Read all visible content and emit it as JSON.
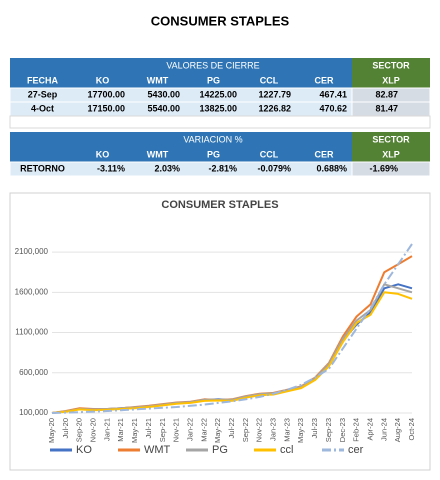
{
  "header": {
    "title": "CONSUMER STAPLES"
  },
  "tables": [
    {
      "group": "VALORES DE CIERRE",
      "sector": "SECTOR",
      "columns": [
        "FECHA",
        "KO",
        "WMT",
        "PG",
        "CCL",
        "CER",
        "XLP"
      ],
      "rows": [
        [
          "27-Sep",
          "17700.00",
          "5430.00",
          "14225.00",
          "1227.79",
          "467.41",
          "82.87"
        ],
        [
          "4-Oct",
          "17150.00",
          "5540.00",
          "13825.00",
          "1226.82",
          "470.62",
          "81.47"
        ]
      ]
    },
    {
      "group": "VARIACION %",
      "sector": "SECTOR",
      "columns": [
        "KO",
        "WMT",
        "PG",
        "CCL",
        "CER",
        "XLP"
      ],
      "rows": [
        [
          "RETORNO",
          "-3.11%",
          "2.03%",
          "-2.81%",
          "-0.079%",
          "0.688%",
          "-1.69%"
        ]
      ]
    }
  ],
  "chart_data": {
    "type": "line",
    "title": "CONSUMER STAPLES",
    "x": [
      "May-20",
      "Jul-20",
      "Sep-20",
      "Nov-20",
      "Jan-21",
      "Mar-21",
      "May-21",
      "Jul-21",
      "Sep-21",
      "Nov-21",
      "Jan-22",
      "Mar-22",
      "May-22",
      "Jul-22",
      "Sep-22",
      "Nov-22",
      "Jan-23",
      "Mar-23",
      "May-23",
      "Jul-23",
      "Sep-23",
      "Dec-23",
      "Feb-24",
      "Apr-24",
      "Jun-24",
      "Aug-24",
      "Oct-24"
    ],
    "series": [
      {
        "name": "KO",
        "color": "#4472c4",
        "values": [
          100000,
          120000,
          150000,
          140000,
          150000,
          160000,
          170000,
          180000,
          200000,
          220000,
          230000,
          260000,
          270000,
          260000,
          300000,
          330000,
          340000,
          380000,
          420000,
          520000,
          700000,
          1000000,
          1200000,
          1350000,
          1650000,
          1700000,
          1650000
        ]
      },
      {
        "name": "WMT",
        "color": "#ed7d31",
        "values": [
          100000,
          125000,
          160000,
          150000,
          150000,
          160000,
          175000,
          190000,
          210000,
          230000,
          240000,
          270000,
          260000,
          270000,
          310000,
          340000,
          350000,
          390000,
          430000,
          540000,
          720000,
          1050000,
          1300000,
          1450000,
          1850000,
          1950000,
          2050000
        ]
      },
      {
        "name": "PG",
        "color": "#a5a5a5",
        "values": [
          100000,
          120000,
          150000,
          145000,
          150000,
          160000,
          170000,
          185000,
          205000,
          225000,
          235000,
          265000,
          265000,
          265000,
          305000,
          335000,
          345000,
          385000,
          425000,
          530000,
          710000,
          1020000,
          1250000,
          1380000,
          1700000,
          1650000,
          1600000
        ]
      },
      {
        "name": "ccl",
        "color": "#ffc000",
        "values": [
          100000,
          115000,
          145000,
          135000,
          140000,
          150000,
          160000,
          175000,
          195000,
          215000,
          225000,
          250000,
          255000,
          250000,
          290000,
          320000,
          330000,
          370000,
          410000,
          510000,
          680000,
          980000,
          1220000,
          1320000,
          1600000,
          1580000,
          1520000
        ]
      },
      {
        "name": "cer",
        "color": "#9db7dd",
        "dash": "dash-dot",
        "values": [
          100000,
          105000,
          110000,
          118000,
          125000,
          135000,
          145000,
          155000,
          165000,
          175000,
          190000,
          205000,
          225000,
          245000,
          270000,
          300000,
          340000,
          390000,
          450000,
          540000,
          650000,
          900000,
          1150000,
          1400000,
          1700000,
          1950000,
          2200000
        ]
      }
    ],
    "ylim": [
      100000,
      2300000
    ],
    "yticks": [
      {
        "value": 100000,
        "label": "100,000"
      },
      {
        "value": 600000,
        "label": "600,000"
      },
      {
        "value": 1100000,
        "label": "1100,000"
      },
      {
        "value": 1600000,
        "label": "1600,000"
      },
      {
        "value": 2100000,
        "label": "2100,000"
      }
    ],
    "grid": true,
    "legend": "bottom"
  }
}
